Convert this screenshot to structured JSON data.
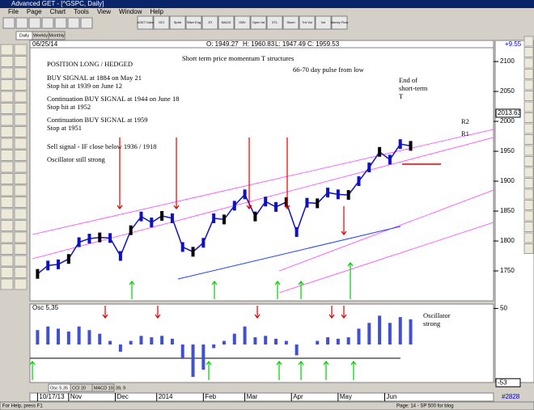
{
  "window": {
    "title": "Advanced GET - [^GSPC, Daily]",
    "menu": [
      "File",
      "Page",
      "Chart",
      "Tools",
      "View",
      "Window",
      "Help"
    ]
  },
  "toolbar": {
    "buttons": [
      "AGET Data",
      "GCI",
      "Sptdr",
      "Sftwr Eng",
      "JTI",
      "MACD",
      "OBV",
      "Open Int",
      "XTL",
      "Stoch",
      "Trd Vol",
      "Vol",
      "Money Flow"
    ],
    "periods": [
      "Daily",
      "Weekly",
      "Monthly"
    ]
  },
  "header": {
    "date": "06/25/14",
    "open": "O: 1949.27",
    "high": "H: 1960.83",
    "low": "L: 1947.49",
    "close": "C: 1959.53",
    "change": "+9.55"
  },
  "chart_data": [
    {
      "type": "line",
      "title": "Short term price momentum T structures",
      "color": "#1010c0",
      "annotations": [
        "POSITION LONG / HEDGED",
        "BUY SIGNAL at 1884 on May 21",
        "Stop hit at 1939 on June 12",
        "Continuation BUY SIGNAL at 1944 on June 18",
        "Stop hit at 1952",
        "Continuation BUY SIGNAL at 1959",
        "Stop at 1951",
        "Sell signal - IF close below 1936 / 1918",
        "Oscillator still strong",
        "66-70 day pulse from low",
        "End of",
        "short-term",
        "T",
        "R2",
        "R1"
      ],
      "values": [
        1745,
        1759,
        1761,
        1770,
        1798,
        1804,
        1806,
        1805,
        1775,
        1818,
        1841,
        1831,
        1842,
        1838,
        1790,
        1782,
        1797,
        1838,
        1836,
        1859,
        1878,
        1841,
        1866,
        1857,
        1865,
        1815,
        1864,
        1863,
        1881,
        1878,
        1877,
        1900,
        1923,
        1949,
        1936,
        1962,
        1959
      ],
      "ylim": [
        1700,
        2115
      ],
      "yticks": [
        1750,
        1800,
        1850,
        1900,
        1950,
        2000,
        2050,
        2100
      ],
      "marker": 2013.63,
      "xlim": [
        -0.5,
        44
      ],
      "xticks": [
        {
          "value": 0,
          "label": "10/17/13"
        },
        {
          "value": 3,
          "label": "Nov"
        },
        {
          "value": 7.5,
          "label": "Dec"
        },
        {
          "value": 11.5,
          "label": "2014"
        },
        {
          "value": 16,
          "label": "Feb"
        },
        {
          "value": 20,
          "label": "Mar"
        },
        {
          "value": 24.5,
          "label": "Apr"
        },
        {
          "value": 29,
          "label": "May"
        },
        {
          "value": 33.5,
          "label": "Jun"
        }
      ]
    },
    {
      "type": "bar",
      "title": "Osc 5,35",
      "color": "#4050d0",
      "annotations": [
        "Oscillator",
        "strong"
      ],
      "values": [
        20,
        25,
        22,
        18,
        25,
        20,
        15,
        5,
        -10,
        5,
        12,
        10,
        12,
        8,
        -20,
        -45,
        -35,
        -5,
        5,
        15,
        25,
        10,
        12,
        8,
        5,
        -15,
        0,
        5,
        10,
        8,
        10,
        22,
        30,
        40,
        30,
        38,
        35
      ],
      "ylim": [
        -55,
        55
      ],
      "yticks": [
        50
      ],
      "marker": -53,
      "xlim": [
        -0.5,
        44
      ]
    }
  ],
  "tabs": [
    "Osc 5,35",
    "CCI 20",
    "MACD 19, 39, 9"
  ],
  "status": {
    "help": "For Help, press F1",
    "page": "Page: 14 - SP 500 for blog",
    "count": "#2828"
  }
}
